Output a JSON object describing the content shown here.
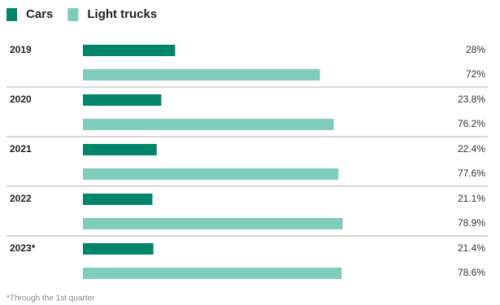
{
  "chart_data": {
    "type": "bar",
    "orientation": "horizontal",
    "categories": [
      "2019",
      "2020",
      "2021",
      "2022",
      "2023*"
    ],
    "series": [
      {
        "name": "Cars",
        "color": "#00846a",
        "values": [
          28,
          23.8,
          22.4,
          21.1,
          21.4
        ],
        "value_labels": [
          "28%",
          "23.8%",
          "22.4%",
          "21.1%",
          "21.4%"
        ]
      },
      {
        "name": "Light trucks",
        "color": "#80cdbf",
        "values": [
          72,
          76.2,
          77.6,
          78.9,
          78.6
        ],
        "value_labels": [
          "72%",
          "76.2%",
          "77.6%",
          "78.9%",
          "78.6%"
        ]
      }
    ],
    "xlim": [
      0,
      100
    ],
    "legend": "top-left",
    "footnote": "*Through the 1st quarter"
  }
}
